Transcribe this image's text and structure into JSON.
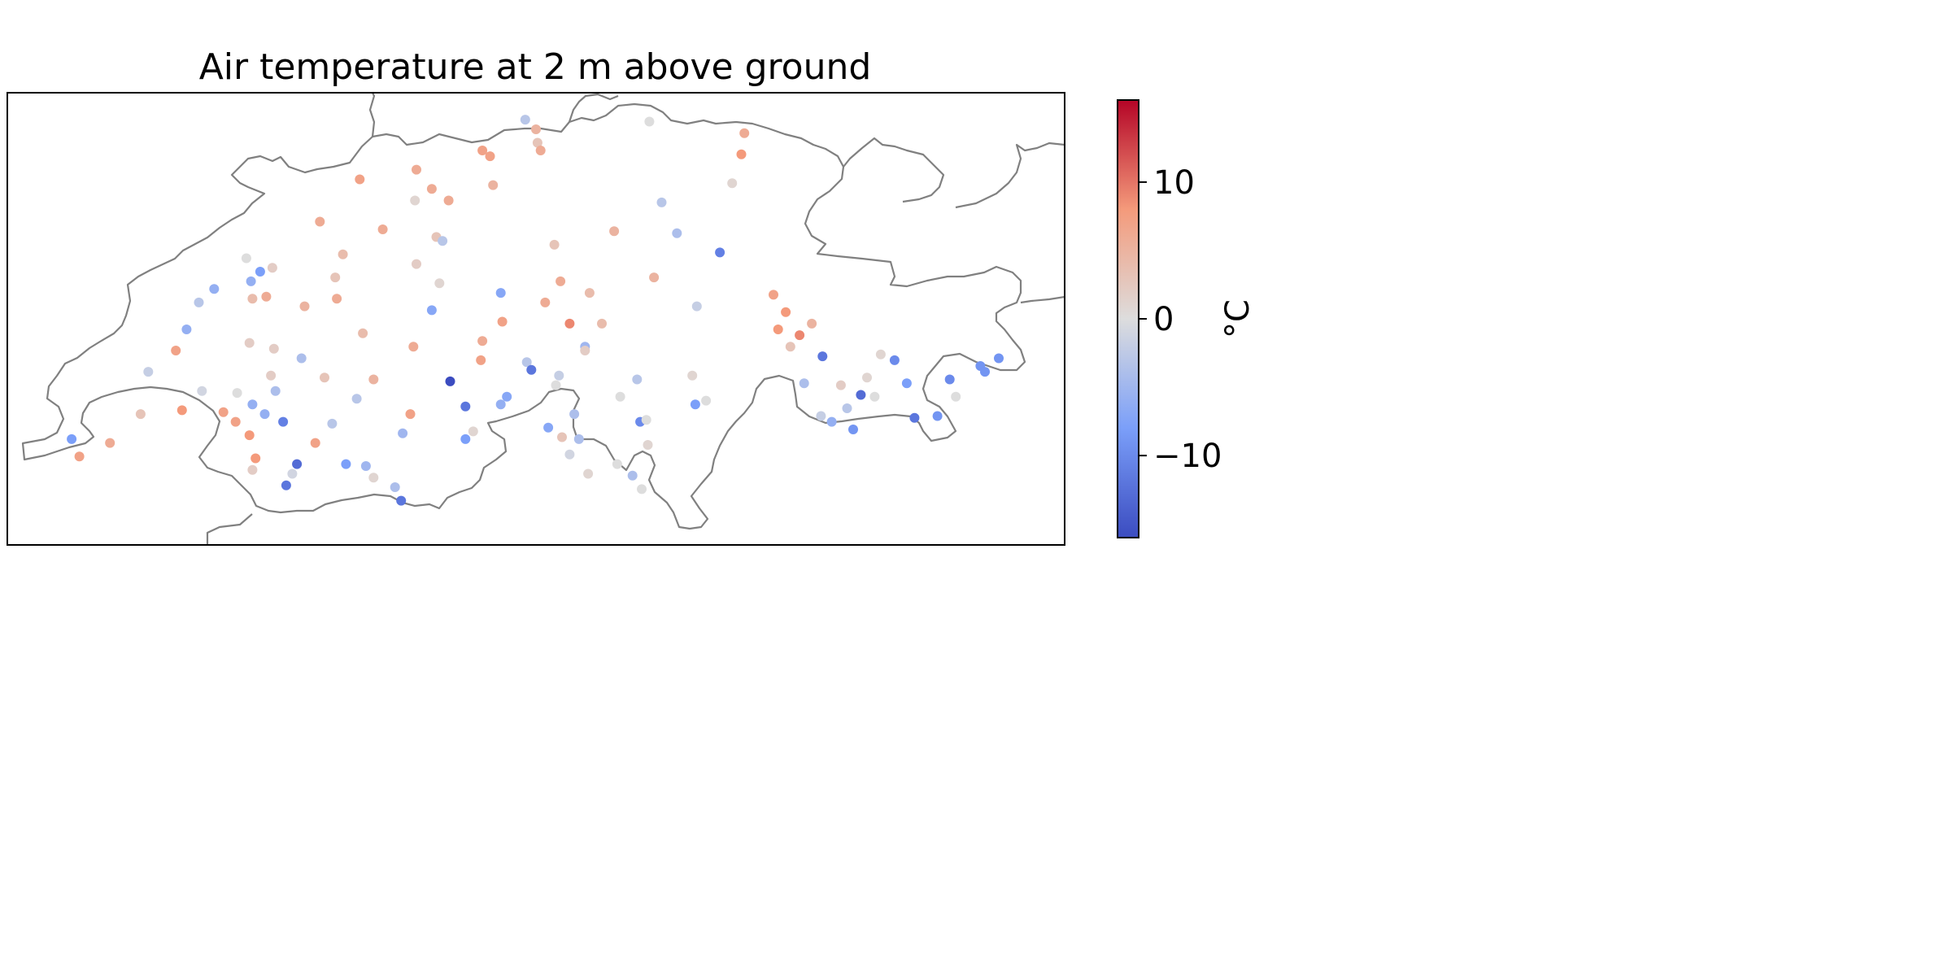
{
  "chart_data": {
    "type": "scatter",
    "title": "Air temperature at 2 m above ground",
    "colorbar": {
      "label": "°C",
      "colormap": "coolwarm",
      "vmin": -16,
      "vmax": 16,
      "ticks": [
        10,
        0,
        -10
      ],
      "tick_labels": [
        "10",
        "0",
        "−10"
      ]
    },
    "map": {
      "region": "Switzerland",
      "border_color": "#808080"
    },
    "grid": false,
    "legend": "none",
    "stations": [
      {
        "lon": 6.17,
        "lat": 46.2,
        "temp": -8
      },
      {
        "lon": 6.22,
        "lat": 46.11,
        "temp": 7
      },
      {
        "lon": 6.42,
        "lat": 46.18,
        "temp": 6
      },
      {
        "lon": 6.62,
        "lat": 46.33,
        "temp": 3
      },
      {
        "lon": 6.67,
        "lat": 46.55,
        "temp": -2
      },
      {
        "lon": 6.89,
        "lat": 46.35,
        "temp": 8
      },
      {
        "lon": 6.85,
        "lat": 46.66,
        "temp": 7
      },
      {
        "lon": 6.92,
        "lat": 46.77,
        "temp": -6
      },
      {
        "lon": 7.0,
        "lat": 46.91,
        "temp": -3
      },
      {
        "lon": 7.1,
        "lat": 46.98,
        "temp": -6
      },
      {
        "lon": 7.02,
        "lat": 46.45,
        "temp": -1
      },
      {
        "lon": 7.16,
        "lat": 46.34,
        "temp": 7
      },
      {
        "lon": 7.24,
        "lat": 46.29,
        "temp": 7
      },
      {
        "lon": 7.25,
        "lat": 46.44,
        "temp": 0
      },
      {
        "lon": 7.33,
        "lat": 46.22,
        "temp": 8
      },
      {
        "lon": 7.31,
        "lat": 47.14,
        "temp": 0
      },
      {
        "lon": 7.33,
        "lat": 46.7,
        "temp": 2
      },
      {
        "lon": 7.34,
        "lat": 47.02,
        "temp": -6
      },
      {
        "lon": 7.35,
        "lat": 46.93,
        "temp": 4
      },
      {
        "lon": 7.35,
        "lat": 46.04,
        "temp": 2
      },
      {
        "lon": 7.35,
        "lat": 46.38,
        "temp": -6
      },
      {
        "lon": 7.37,
        "lat": 46.1,
        "temp": 8
      },
      {
        "lon": 7.4,
        "lat": 47.07,
        "temp": -8
      },
      {
        "lon": 7.44,
        "lat": 46.94,
        "temp": 6
      },
      {
        "lon": 7.43,
        "lat": 46.33,
        "temp": -6
      },
      {
        "lon": 7.47,
        "lat": 46.53,
        "temp": 2
      },
      {
        "lon": 7.48,
        "lat": 47.09,
        "temp": 2
      },
      {
        "lon": 7.49,
        "lat": 46.67,
        "temp": 2
      },
      {
        "lon": 7.5,
        "lat": 46.45,
        "temp": -4
      },
      {
        "lon": 7.55,
        "lat": 46.29,
        "temp": -11
      },
      {
        "lon": 7.57,
        "lat": 45.96,
        "temp": -12
      },
      {
        "lon": 7.61,
        "lat": 46.02,
        "temp": -1
      },
      {
        "lon": 7.64,
        "lat": 46.07,
        "temp": -13
      },
      {
        "lon": 7.67,
        "lat": 46.62,
        "temp": -4
      },
      {
        "lon": 7.69,
        "lat": 46.89,
        "temp": 5
      },
      {
        "lon": 7.76,
        "lat": 46.18,
        "temp": 7
      },
      {
        "lon": 7.79,
        "lat": 47.33,
        "temp": 6
      },
      {
        "lon": 7.82,
        "lat": 46.52,
        "temp": 3
      },
      {
        "lon": 7.87,
        "lat": 46.28,
        "temp": -3
      },
      {
        "lon": 7.89,
        "lat": 47.04,
        "temp": 3
      },
      {
        "lon": 7.94,
        "lat": 47.16,
        "temp": 4
      },
      {
        "lon": 7.96,
        "lat": 46.07,
        "temp": -8
      },
      {
        "lon": 8.03,
        "lat": 46.41,
        "temp": -3
      },
      {
        "lon": 8.05,
        "lat": 47.55,
        "temp": 7
      },
      {
        "lon": 8.07,
        "lat": 46.75,
        "temp": 4
      },
      {
        "lon": 8.09,
        "lat": 46.06,
        "temp": -5
      },
      {
        "lon": 8.14,
        "lat": 46.51,
        "temp": 5
      },
      {
        "lon": 8.2,
        "lat": 47.29,
        "temp": 6
      },
      {
        "lon": 8.28,
        "lat": 45.95,
        "temp": -4
      },
      {
        "lon": 8.32,
        "lat": 45.88,
        "temp": -12
      },
      {
        "lon": 8.33,
        "lat": 46.23,
        "temp": -5
      },
      {
        "lon": 8.38,
        "lat": 46.33,
        "temp": 7
      },
      {
        "lon": 8.4,
        "lat": 46.68,
        "temp": 6
      },
      {
        "lon": 8.42,
        "lat": 47.11,
        "temp": 2
      },
      {
        "lon": 8.41,
        "lat": 47.44,
        "temp": 1
      },
      {
        "lon": 8.42,
        "lat": 47.6,
        "temp": 6
      },
      {
        "lon": 8.52,
        "lat": 47.5,
        "temp": 6
      },
      {
        "lon": 8.52,
        "lat": 46.87,
        "temp": -7
      },
      {
        "lon": 8.55,
        "lat": 47.25,
        "temp": 3
      },
      {
        "lon": 8.57,
        "lat": 47.01,
        "temp": 1
      },
      {
        "lon": 8.59,
        "lat": 47.23,
        "temp": -3
      },
      {
        "lon": 8.63,
        "lat": 47.44,
        "temp": 6
      },
      {
        "lon": 8.64,
        "lat": 46.5,
        "temp": -16
      },
      {
        "lon": 8.74,
        "lat": 46.37,
        "temp": -12
      },
      {
        "lon": 8.74,
        "lat": 46.2,
        "temp": -8
      },
      {
        "lon": 8.79,
        "lat": 46.24,
        "temp": 1
      },
      {
        "lon": 8.85,
        "lat": 46.71,
        "temp": 6
      },
      {
        "lon": 8.84,
        "lat": 46.61,
        "temp": 7
      },
      {
        "lon": 8.85,
        "lat": 47.7,
        "temp": 7
      },
      {
        "lon": 8.9,
        "lat": 47.67,
        "temp": 7
      },
      {
        "lon": 8.92,
        "lat": 47.52,
        "temp": 5
      },
      {
        "lon": 8.97,
        "lat": 46.96,
        "temp": -7
      },
      {
        "lon": 8.98,
        "lat": 46.81,
        "temp": 7
      },
      {
        "lon": 8.97,
        "lat": 46.38,
        "temp": -6
      },
      {
        "lon": 9.01,
        "lat": 46.42,
        "temp": -7
      },
      {
        "lon": 9.13,
        "lat": 47.86,
        "temp": -3
      },
      {
        "lon": 9.14,
        "lat": 46.6,
        "temp": -3
      },
      {
        "lon": 9.17,
        "lat": 46.56,
        "temp": -12
      },
      {
        "lon": 9.21,
        "lat": 47.74,
        "temp": 3
      },
      {
        "lon": 9.2,
        "lat": 47.81,
        "temp": 5
      },
      {
        "lon": 9.23,
        "lat": 47.7,
        "temp": 6
      },
      {
        "lon": 9.26,
        "lat": 46.91,
        "temp": 6
      },
      {
        "lon": 9.28,
        "lat": 46.26,
        "temp": -7
      },
      {
        "lon": 9.32,
        "lat": 47.21,
        "temp": 3
      },
      {
        "lon": 9.36,
        "lat": 47.02,
        "temp": 6
      },
      {
        "lon": 9.37,
        "lat": 46.21,
        "temp": 3
      },
      {
        "lon": 9.33,
        "lat": 46.48,
        "temp": 0
      },
      {
        "lon": 9.35,
        "lat": 46.53,
        "temp": -2
      },
      {
        "lon": 9.42,
        "lat": 46.8,
        "temp": 9
      },
      {
        "lon": 9.45,
        "lat": 46.33,
        "temp": -4
      },
      {
        "lon": 9.52,
        "lat": 46.68,
        "temp": -5
      },
      {
        "lon": 9.55,
        "lat": 46.96,
        "temp": 4
      },
      {
        "lon": 9.63,
        "lat": 46.8,
        "temp": 4
      },
      {
        "lon": 9.71,
        "lat": 47.28,
        "temp": 5
      },
      {
        "lon": 9.83,
        "lat": 46.01,
        "temp": -4
      },
      {
        "lon": 9.86,
        "lat": 46.51,
        "temp": -3
      },
      {
        "lon": 9.88,
        "lat": 46.29,
        "temp": -10
      },
      {
        "lon": 9.89,
        "lat": 45.94,
        "temp": 0
      },
      {
        "lon": 9.92,
        "lat": 46.3,
        "temp": 0
      },
      {
        "lon": 9.93,
        "lat": 46.17,
        "temp": 1
      },
      {
        "lon": 9.94,
        "lat": 47.85,
        "temp": 0
      },
      {
        "lon": 9.97,
        "lat": 47.04,
        "temp": 5
      },
      {
        "lon": 10.02,
        "lat": 47.43,
        "temp": -3
      },
      {
        "lon": 10.12,
        "lat": 47.27,
        "temp": -4
      },
      {
        "lon": 10.22,
        "lat": 46.53,
        "temp": 1
      },
      {
        "lon": 10.24,
        "lat": 46.38,
        "temp": -8
      },
      {
        "lon": 10.25,
        "lat": 46.89,
        "temp": -2
      },
      {
        "lon": 10.31,
        "lat": 46.4,
        "temp": 0
      },
      {
        "lon": 10.4,
        "lat": 47.17,
        "temp": -11
      },
      {
        "lon": 10.48,
        "lat": 47.53,
        "temp": 1
      },
      {
        "lon": 10.56,
        "lat": 47.79,
        "temp": 6
      },
      {
        "lon": 10.54,
        "lat": 47.68,
        "temp": 8
      },
      {
        "lon": 10.75,
        "lat": 46.95,
        "temp": 7
      },
      {
        "lon": 10.78,
        "lat": 46.77,
        "temp": 8
      },
      {
        "lon": 10.83,
        "lat": 46.86,
        "temp": 8
      },
      {
        "lon": 10.86,
        "lat": 46.68,
        "temp": 3
      },
      {
        "lon": 10.92,
        "lat": 46.74,
        "temp": 9
      },
      {
        "lon": 10.95,
        "lat": 46.49,
        "temp": -4
      },
      {
        "lon": 11.0,
        "lat": 46.8,
        "temp": 5
      },
      {
        "lon": 11.06,
        "lat": 46.32,
        "temp": -2
      },
      {
        "lon": 11.07,
        "lat": 46.63,
        "temp": -12
      },
      {
        "lon": 11.13,
        "lat": 46.29,
        "temp": -6
      },
      {
        "lon": 11.19,
        "lat": 46.48,
        "temp": 2
      },
      {
        "lon": 11.23,
        "lat": 46.36,
        "temp": -3
      },
      {
        "lon": 11.27,
        "lat": 46.25,
        "temp": -9
      },
      {
        "lon": 11.32,
        "lat": 46.43,
        "temp": -13
      },
      {
        "lon": 11.36,
        "lat": 46.52,
        "temp": 1
      },
      {
        "lon": 11.41,
        "lat": 46.42,
        "temp": 0
      },
      {
        "lon": 11.54,
        "lat": 46.61,
        "temp": -10
      },
      {
        "lon": 11.62,
        "lat": 46.49,
        "temp": -8
      },
      {
        "lon": 11.67,
        "lat": 46.31,
        "temp": -12
      },
      {
        "lon": 11.82,
        "lat": 46.32,
        "temp": -9
      },
      {
        "lon": 11.94,
        "lat": 46.42,
        "temp": 0
      },
      {
        "lon": 11.9,
        "lat": 46.51,
        "temp": -10
      },
      {
        "lon": 12.1,
        "lat": 46.58,
        "temp": -9
      },
      {
        "lon": 12.13,
        "lat": 46.55,
        "temp": -9
      },
      {
        "lon": 12.22,
        "lat": 46.62,
        "temp": -9
      },
      {
        "lon": 11.45,
        "lat": 46.64,
        "temp": 1
      },
      {
        "lon": 7.9,
        "lat": 46.93,
        "temp": 6
      },
      {
        "lon": 9.52,
        "lat": 46.66,
        "temp": 2
      },
      {
        "lon": 9.42,
        "lat": 46.12,
        "temp": -1
      },
      {
        "lon": 9.54,
        "lat": 46.02,
        "temp": 1
      },
      {
        "lon": 9.73,
        "lat": 46.07,
        "temp": 0
      },
      {
        "lon": 9.48,
        "lat": 46.2,
        "temp": -4
      },
      {
        "lon": 8.14,
        "lat": 46.0,
        "temp": 1
      },
      {
        "lon": 9.75,
        "lat": 46.42,
        "temp": 0
      }
    ]
  }
}
